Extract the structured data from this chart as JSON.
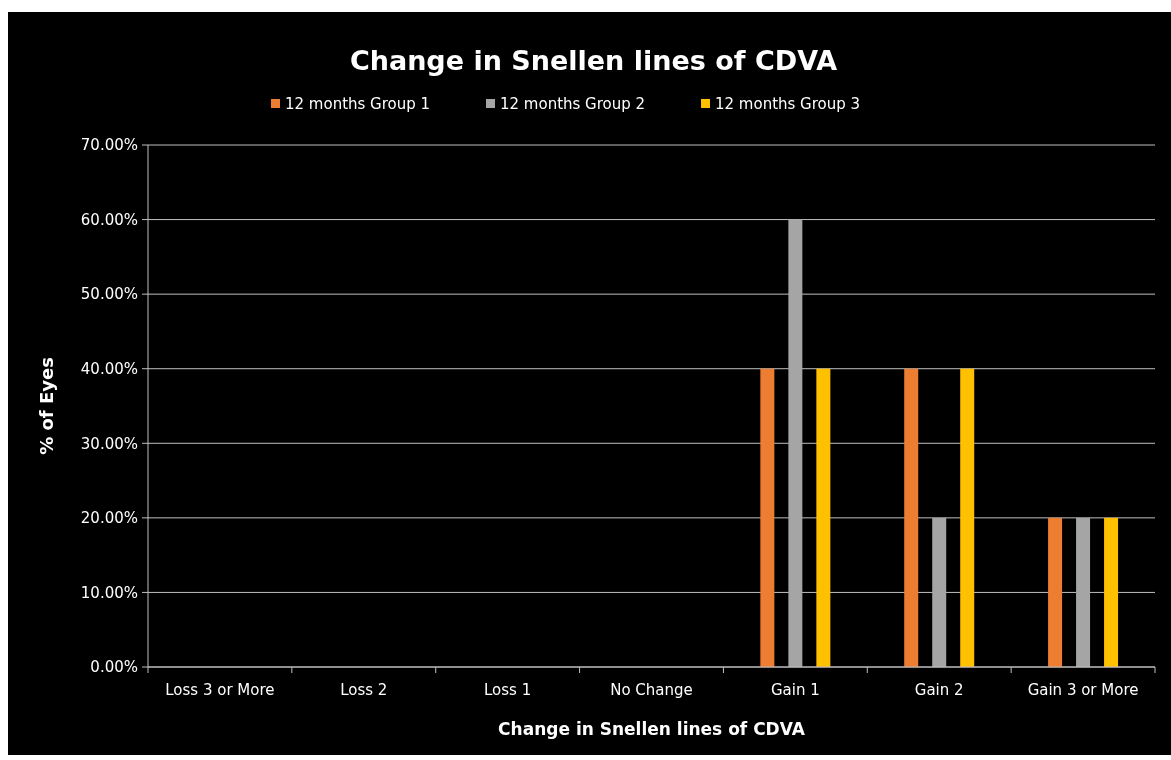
{
  "chart_data": {
    "type": "bar",
    "title": "Change in Snellen lines of CDVA",
    "xlabel": "Change in Snellen lines of CDVA",
    "ylabel": "% of Eyes",
    "categories": [
      "Loss 3 or More",
      "Loss 2",
      "Loss 1",
      "No Change",
      "Gain 1",
      "Gain 2",
      "Gain 3 or More"
    ],
    "series": [
      {
        "name": "12 months Group 1",
        "color": "#ed7d31",
        "values": [
          0,
          0,
          0,
          0,
          40,
          40,
          20
        ]
      },
      {
        "name": "12 months Group 2",
        "color": "#a5a5a5",
        "values": [
          0,
          0,
          0,
          0,
          60,
          20,
          20
        ]
      },
      {
        "name": "12 months Group 3",
        "color": "#ffc000",
        "values": [
          0,
          0,
          0,
          0,
          40,
          40,
          20
        ]
      }
    ],
    "ylim": [
      0,
      70
    ],
    "yticks": [
      {
        "value": 0,
        "label": "0.00%"
      },
      {
        "value": 10,
        "label": "10.00%"
      },
      {
        "value": 20,
        "label": "20.00%"
      },
      {
        "value": 30,
        "label": "30.00%"
      },
      {
        "value": 40,
        "label": "40.00%"
      },
      {
        "value": 50,
        "label": "50.00%"
      },
      {
        "value": 60,
        "label": "60.00%"
      },
      {
        "value": 70,
        "label": "70.00%"
      }
    ],
    "grid": "y",
    "legend": "top"
  }
}
